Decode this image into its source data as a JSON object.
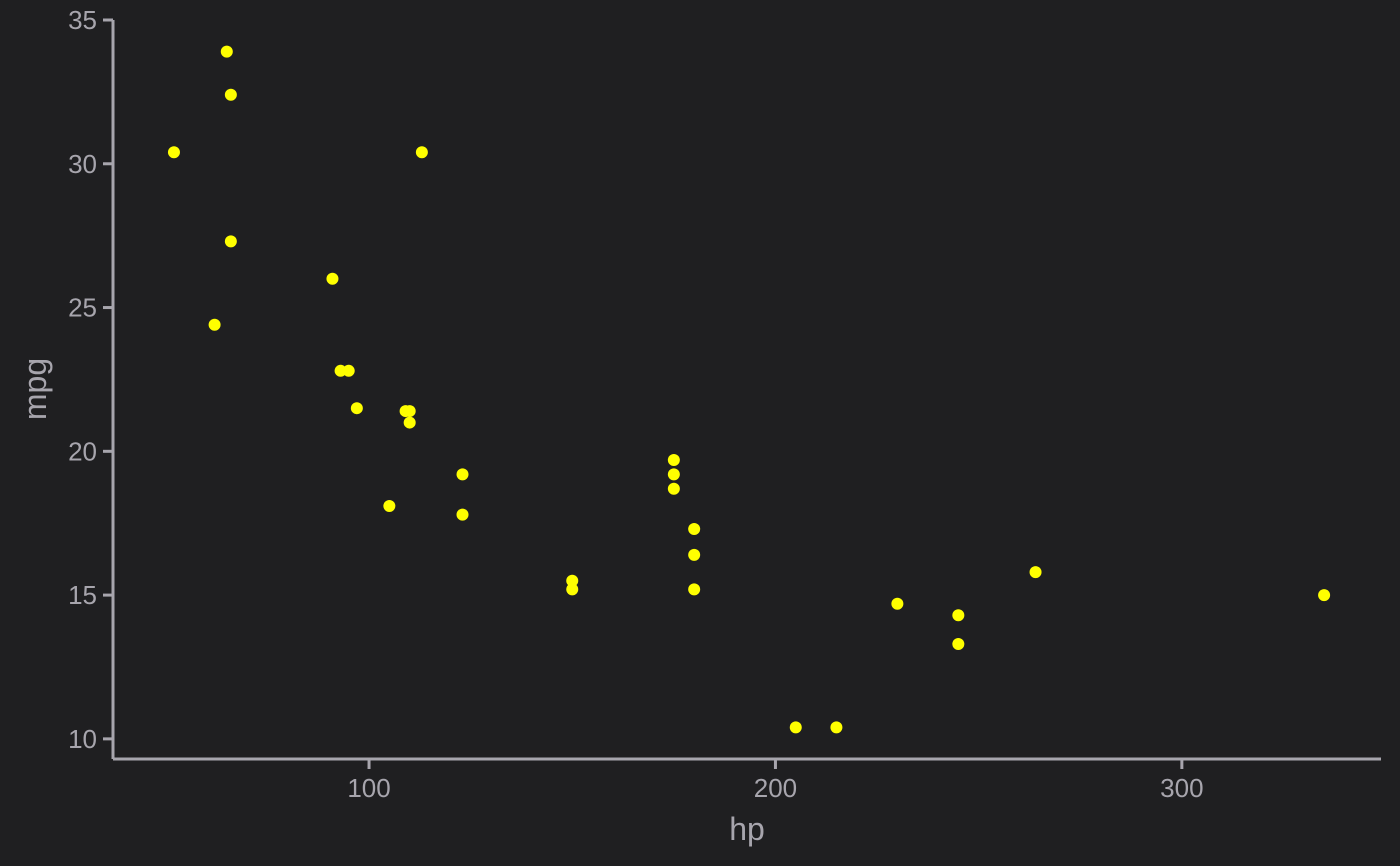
{
  "colors": {
    "background": "#1f1f21",
    "axis": "#a7a5ad",
    "point": "#ffff00"
  },
  "chart_data": {
    "type": "scatter",
    "title": "",
    "xlabel": "hp",
    "ylabel": "mpg",
    "xlim": [
      37,
      349
    ],
    "ylim": [
      9.3,
      35.0
    ],
    "xticks": [
      100,
      200,
      300
    ],
    "yticks": [
      10,
      15,
      20,
      25,
      30,
      35
    ],
    "grid": false,
    "legend": "none",
    "points": [
      {
        "x": 52,
        "y": 30.4
      },
      {
        "x": 62,
        "y": 24.4
      },
      {
        "x": 65,
        "y": 33.9
      },
      {
        "x": 66,
        "y": 32.4
      },
      {
        "x": 66,
        "y": 27.3
      },
      {
        "x": 91,
        "y": 26.0
      },
      {
        "x": 93,
        "y": 22.8
      },
      {
        "x": 95,
        "y": 22.8
      },
      {
        "x": 97,
        "y": 21.5
      },
      {
        "x": 105,
        "y": 18.1
      },
      {
        "x": 109,
        "y": 21.4
      },
      {
        "x": 110,
        "y": 21.4
      },
      {
        "x": 110,
        "y": 21.0
      },
      {
        "x": 113,
        "y": 30.4
      },
      {
        "x": 123,
        "y": 19.2
      },
      {
        "x": 123,
        "y": 17.8
      },
      {
        "x": 150,
        "y": 15.5
      },
      {
        "x": 150,
        "y": 15.2
      },
      {
        "x": 175,
        "y": 19.7
      },
      {
        "x": 175,
        "y": 19.2
      },
      {
        "x": 175,
        "y": 18.7
      },
      {
        "x": 180,
        "y": 17.3
      },
      {
        "x": 180,
        "y": 16.4
      },
      {
        "x": 180,
        "y": 15.2
      },
      {
        "x": 205,
        "y": 10.4
      },
      {
        "x": 215,
        "y": 10.4
      },
      {
        "x": 230,
        "y": 14.7
      },
      {
        "x": 245,
        "y": 14.3
      },
      {
        "x": 245,
        "y": 13.3
      },
      {
        "x": 264,
        "y": 15.8
      },
      {
        "x": 335,
        "y": 15.0
      }
    ]
  }
}
